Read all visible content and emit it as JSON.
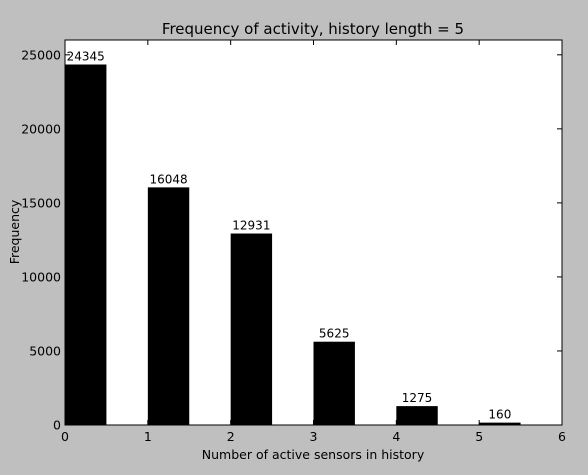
{
  "chart_data": {
    "type": "bar",
    "title": "Frequency of activity, history length = 5",
    "xlabel": "Number of active sensors in history",
    "ylabel": "Frequency",
    "x": [
      0,
      1,
      2,
      3,
      4,
      5
    ],
    "values": [
      24345,
      16048,
      12931,
      5625,
      1275,
      160
    ],
    "data_labels": [
      "24345",
      "16048",
      "12931",
      "5625",
      "1275",
      "160"
    ],
    "bar_width": 0.5,
    "xlim": [
      0,
      6
    ],
    "ylim": [
      0,
      26000
    ],
    "xticks": [
      0,
      1,
      2,
      3,
      4,
      5,
      6
    ],
    "xtick_labels": [
      "0",
      "1",
      "2",
      "3",
      "4",
      "5",
      "6"
    ],
    "yticks": [
      0,
      5000,
      10000,
      15000,
      20000,
      25000
    ],
    "ytick_labels": [
      "0",
      "5000",
      "10000",
      "15000",
      "20000",
      "25000"
    ],
    "grid": false,
    "legend": "none",
    "colors": {
      "bar": "#000000",
      "background": "#bfbfbf",
      "plot_area": "#ffffff"
    }
  }
}
